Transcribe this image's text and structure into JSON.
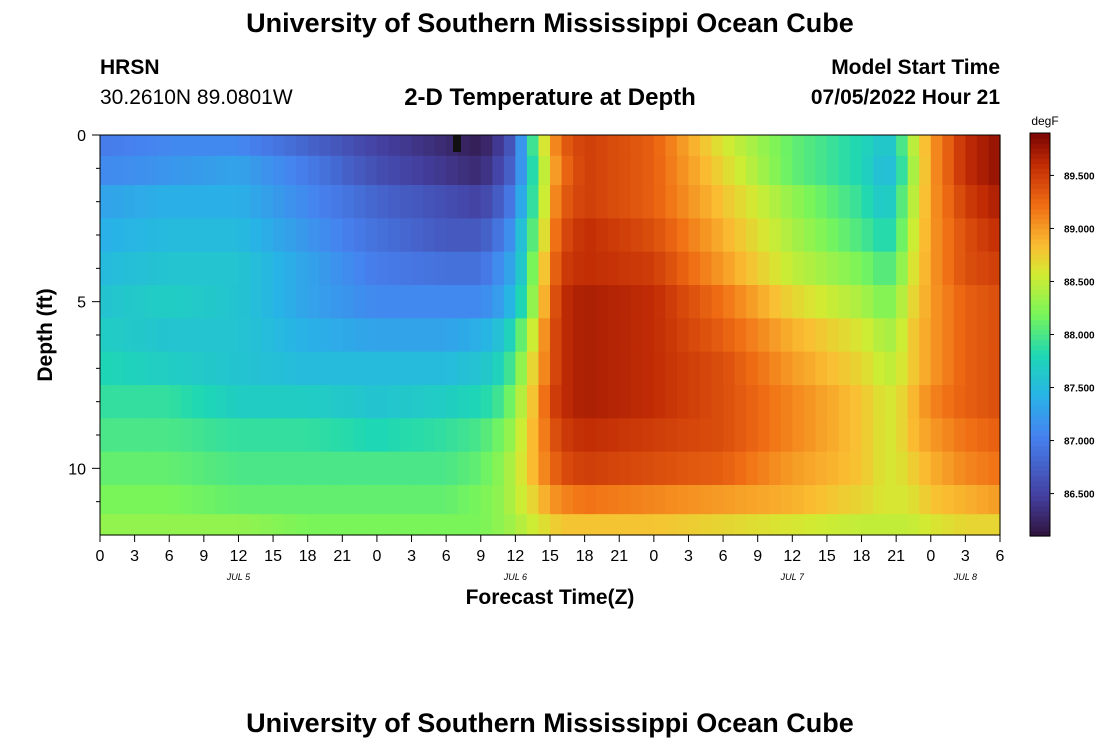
{
  "header": {
    "title": "University of Southern Mississippi Ocean Cube",
    "station": "HRSN",
    "coordinates": "30.2610N  89.0801W",
    "subtitle": "2-D Temperature at Depth",
    "model_start_label": "Model Start Time",
    "model_start_value": "07/05/2022 Hour 21"
  },
  "footer": {
    "title": "University of Southern Mississippi Ocean Cube"
  },
  "chart_data": {
    "type": "heatmap",
    "title": "2-D Temperature at Depth",
    "xlabel": "Forecast Time(Z)",
    "ylabel": "Depth (ft)",
    "x_ticks": [
      "0",
      "3",
      "6",
      "9",
      "12",
      "15",
      "18",
      "21",
      "0",
      "3",
      "6",
      "9",
      "12",
      "15",
      "18",
      "21",
      "0",
      "3",
      "6",
      "9",
      "12",
      "15",
      "18",
      "21",
      "0",
      "3",
      "6"
    ],
    "x_hours_range": [
      0,
      78
    ],
    "date_labels": [
      {
        "label": "JUL 5",
        "hour": 12
      },
      {
        "label": "JUL 6",
        "hour": 36
      },
      {
        "label": "JUL 7",
        "hour": 60
      },
      {
        "label": "JUL 8",
        "hour": 75
      }
    ],
    "y_ticks": [
      0,
      5,
      10
    ],
    "ylim": [
      0,
      12
    ],
    "colorbar": {
      "unit": "degF",
      "range": [
        86.1,
        89.9
      ],
      "ticks": [
        "86.500",
        "87.000",
        "87.500",
        "88.000",
        "88.500",
        "89.000",
        "89.500"
      ],
      "tick_values": [
        86.5,
        87.0,
        87.5,
        88.0,
        88.5,
        89.0,
        89.5
      ]
    },
    "depth_levels_ft": [
      0.25,
      1.0,
      2.0,
      3.0,
      4.0,
      5.0,
      6.0,
      7.0,
      8.0,
      9.0,
      10.0,
      11.0,
      11.75
    ],
    "key_hours": [
      0,
      6,
      12,
      18,
      24,
      30,
      33,
      35,
      36,
      37,
      38,
      39,
      40,
      42,
      48,
      54,
      60,
      66,
      68,
      69,
      70,
      72,
      75,
      78
    ],
    "values": [
      [
        87.0,
        87.1,
        87.1,
        86.8,
        86.5,
        86.3,
        86.2,
        86.5,
        86.8,
        87.6,
        88.3,
        88.9,
        89.3,
        89.5,
        89.3,
        88.6,
        88.1,
        87.8,
        87.6,
        87.7,
        88.3,
        89.0,
        89.6,
        89.8
      ],
      [
        87.1,
        87.2,
        87.3,
        87.0,
        86.6,
        86.4,
        86.3,
        86.6,
        86.9,
        87.5,
        88.2,
        88.8,
        89.2,
        89.5,
        89.3,
        88.7,
        88.1,
        87.8,
        87.5,
        87.6,
        88.2,
        89.0,
        89.6,
        89.8
      ],
      [
        87.3,
        87.4,
        87.4,
        87.1,
        86.8,
        86.6,
        86.5,
        86.8,
        87.1,
        87.6,
        88.2,
        88.9,
        89.3,
        89.5,
        89.3,
        88.8,
        88.3,
        87.9,
        87.6,
        87.8,
        88.3,
        89.0,
        89.5,
        89.7
      ],
      [
        87.4,
        87.5,
        87.5,
        87.2,
        86.9,
        86.7,
        86.7,
        87.0,
        87.3,
        87.8,
        88.3,
        89.0,
        89.4,
        89.6,
        89.4,
        88.9,
        88.4,
        88.0,
        87.8,
        87.9,
        88.4,
        89.0,
        89.4,
        89.6
      ],
      [
        87.5,
        87.6,
        87.6,
        87.3,
        87.0,
        86.9,
        86.9,
        87.2,
        87.4,
        87.9,
        88.5,
        89.1,
        89.5,
        89.6,
        89.5,
        89.0,
        88.5,
        88.2,
        88.0,
        88.1,
        88.5,
        89.0,
        89.4,
        89.5
      ],
      [
        87.6,
        87.7,
        87.6,
        87.3,
        87.1,
        87.1,
        87.1,
        87.3,
        87.6,
        88.0,
        88.6,
        89.2,
        89.6,
        89.7,
        89.6,
        89.2,
        88.7,
        88.4,
        88.2,
        88.3,
        88.6,
        89.0,
        89.3,
        89.4
      ],
      [
        87.7,
        87.6,
        87.6,
        87.4,
        87.3,
        87.3,
        87.4,
        87.6,
        87.9,
        88.3,
        88.8,
        89.3,
        89.6,
        89.7,
        89.6,
        89.3,
        88.9,
        88.6,
        88.4,
        88.4,
        88.7,
        89.0,
        89.3,
        89.4
      ],
      [
        87.8,
        87.7,
        87.6,
        87.5,
        87.5,
        87.5,
        87.6,
        87.8,
        88.1,
        88.5,
        88.9,
        89.3,
        89.6,
        89.7,
        89.6,
        89.4,
        89.0,
        88.7,
        88.5,
        88.5,
        88.7,
        89.0,
        89.3,
        89.4
      ],
      [
        87.9,
        87.9,
        87.7,
        87.7,
        87.6,
        87.7,
        87.8,
        88.0,
        88.3,
        88.6,
        89.0,
        89.4,
        89.6,
        89.7,
        89.6,
        89.4,
        89.1,
        88.8,
        88.6,
        88.6,
        88.8,
        89.1,
        89.3,
        89.4
      ],
      [
        88.0,
        88.0,
        87.9,
        87.9,
        87.8,
        87.9,
        88.0,
        88.2,
        88.4,
        88.7,
        89.0,
        89.3,
        89.5,
        89.6,
        89.5,
        89.4,
        89.1,
        88.8,
        88.6,
        88.6,
        88.8,
        89.0,
        89.2,
        89.3
      ],
      [
        88.1,
        88.1,
        88.0,
        88.0,
        88.0,
        88.0,
        88.1,
        88.3,
        88.5,
        88.7,
        89.0,
        89.2,
        89.4,
        89.5,
        89.4,
        89.3,
        89.0,
        88.8,
        88.6,
        88.6,
        88.7,
        88.9,
        89.1,
        89.2
      ],
      [
        88.2,
        88.2,
        88.1,
        88.1,
        88.1,
        88.1,
        88.2,
        88.3,
        88.5,
        88.6,
        88.8,
        89.0,
        89.1,
        89.2,
        89.1,
        89.0,
        88.9,
        88.7,
        88.6,
        88.6,
        88.6,
        88.8,
        88.9,
        89.0
      ],
      [
        88.3,
        88.3,
        88.3,
        88.2,
        88.2,
        88.2,
        88.2,
        88.3,
        88.4,
        88.5,
        88.6,
        88.7,
        88.8,
        88.8,
        88.8,
        88.7,
        88.6,
        88.5,
        88.5,
        88.5,
        88.5,
        88.6,
        88.7,
        88.7
      ]
    ]
  }
}
